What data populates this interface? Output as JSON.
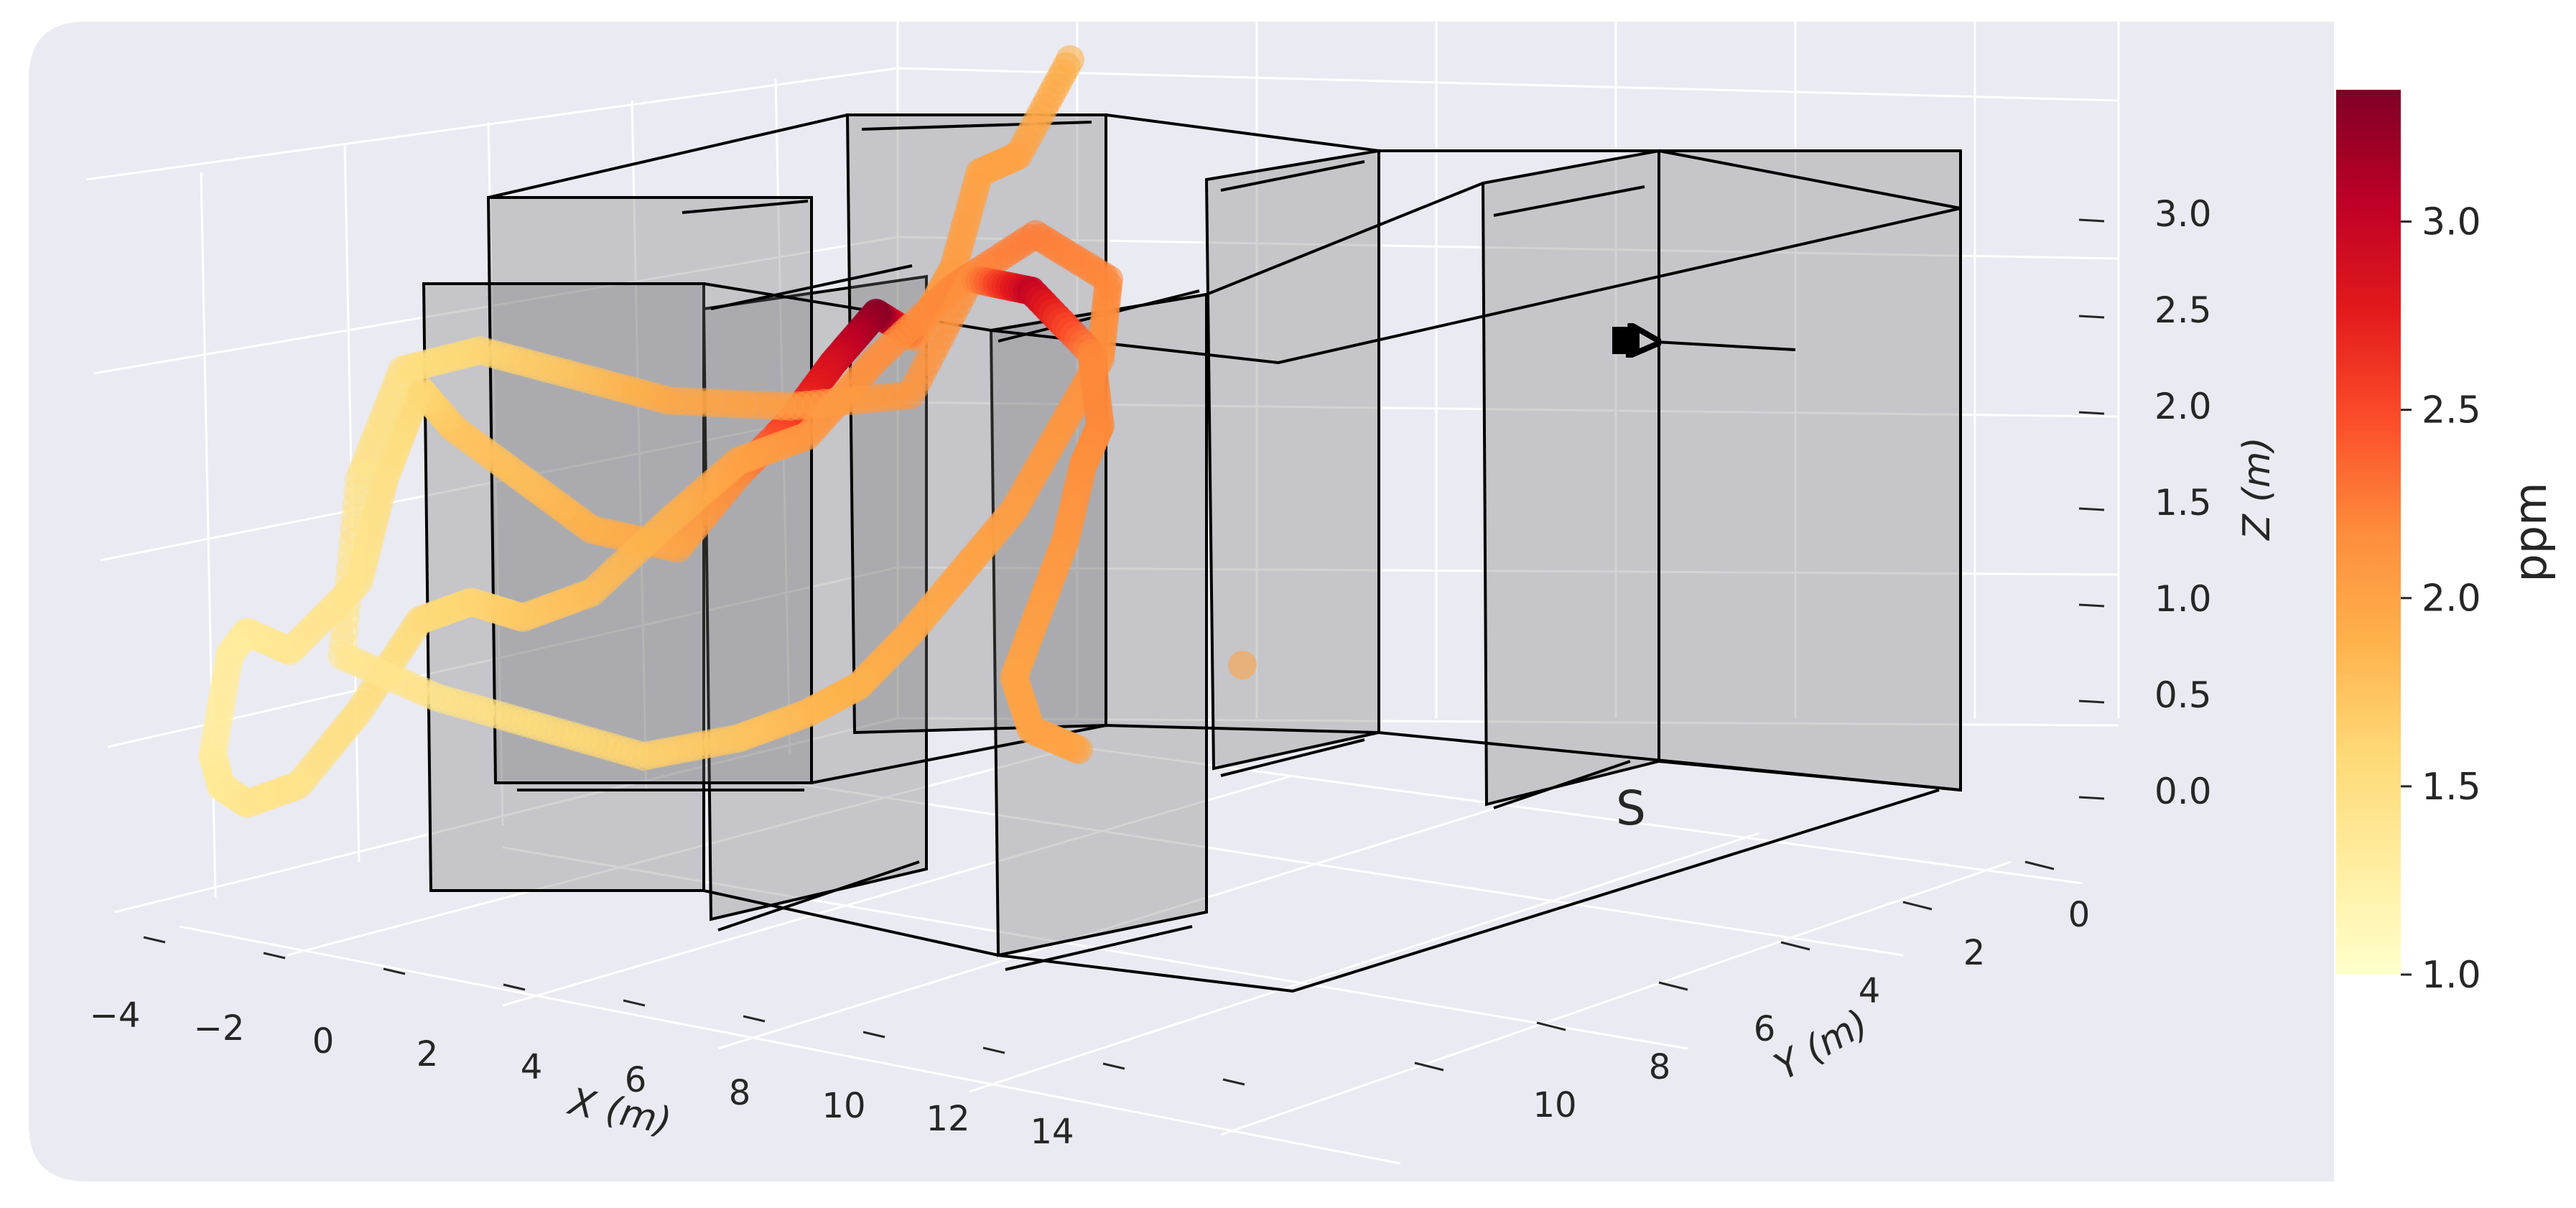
{
  "chart_data": {
    "type": "scatter",
    "projection": "3d",
    "title": "",
    "xlabel": "X (m)",
    "ylabel": "Y (m)",
    "zlabel": "Z (m)",
    "xlim": [
      -4,
      15
    ],
    "ylim": [
      -1,
      11
    ],
    "zlim": [
      -0.3,
      3.4
    ],
    "x_ticks": [
      "−4",
      "−2",
      "0",
      "2",
      "4",
      "6",
      "8",
      "10",
      "12",
      "14"
    ],
    "y_ticks": [
      "0",
      "2",
      "4",
      "6",
      "8",
      "10"
    ],
    "z_ticks": [
      "0.0",
      "0.5",
      "1.0",
      "1.5",
      "2.0",
      "2.5",
      "3.0"
    ],
    "grid": true,
    "colorbar": {
      "label": "ppm",
      "colormap": "YlOrRd",
      "range": [
        1.0,
        3.35
      ],
      "ticks": [
        "1.0",
        "1.5",
        "2.0",
        "2.5",
        "3.0"
      ]
    },
    "annotations": [
      {
        "text": "S",
        "role": "source-location"
      }
    ],
    "marker": {
      "type": "square",
      "color": "#000000",
      "arrow": true
    },
    "series": [
      {
        "values": [
          [
            10.5,
            0.5,
            2.3,
            1.9
          ],
          [
            9.6,
            1.1,
            2.0,
            2.0
          ],
          [
            8.7,
            2.0,
            2.2,
            2.0
          ],
          [
            8.0,
            2.8,
            1.9,
            2.05
          ],
          [
            7.3,
            3.3,
            1.7,
            2.1
          ],
          [
            7.0,
            3.0,
            1.85,
            3.3
          ],
          [
            6.3,
            3.4,
            1.75,
            2.9
          ],
          [
            5.6,
            3.8,
            1.6,
            2.6
          ],
          [
            4.8,
            4.2,
            1.5,
            2.2
          ],
          [
            3.9,
            4.6,
            1.3,
            2.0
          ],
          [
            3.1,
            4.2,
            1.5,
            1.9
          ],
          [
            2.6,
            3.6,
            1.8,
            1.8
          ],
          [
            2.1,
            3.0,
            2.1,
            1.75
          ],
          [
            1.5,
            3.4,
            2.5,
            1.6
          ],
          [
            0.8,
            4.0,
            2.2,
            1.5
          ],
          [
            0.2,
            4.6,
            1.8,
            1.45
          ],
          [
            -0.5,
            4.4,
            1.5,
            1.4
          ],
          [
            -1.2,
            4.8,
            1.8,
            1.35
          ],
          [
            -1.8,
            5.6,
            1.9,
            1.3
          ],
          [
            -2.3,
            6.2,
            1.5,
            1.3
          ],
          [
            -2.0,
            5.8,
            1.2,
            1.35
          ],
          [
            -1.4,
            5.2,
            0.9,
            1.4
          ],
          [
            -0.6,
            4.8,
            0.8,
            1.45
          ],
          [
            0.3,
            4.4,
            1.0,
            1.5
          ],
          [
            1.2,
            4.0,
            1.3,
            1.55
          ],
          [
            2.0,
            3.6,
            1.2,
            1.6
          ],
          [
            2.8,
            3.2,
            0.9,
            1.7
          ],
          [
            3.8,
            2.8,
            0.8,
            1.8
          ],
          [
            4.8,
            2.6,
            1.0,
            1.9
          ],
          [
            5.8,
            2.2,
            1.1,
            2.0
          ],
          [
            6.8,
            1.8,
            1.0,
            2.1
          ],
          [
            7.8,
            1.4,
            1.2,
            2.15
          ],
          [
            8.8,
            1.2,
            1.4,
            2.2
          ],
          [
            9.6,
            1.5,
            1.6,
            2.25
          ],
          [
            10.2,
            2.0,
            1.3,
            2.2
          ],
          [
            9.8,
            2.6,
            1.0,
            2.15
          ],
          [
            9.0,
            3.2,
            0.8,
            2.1
          ],
          [
            8.2,
            3.8,
            0.6,
            2.05
          ],
          [
            7.3,
            4.4,
            0.5,
            2.0
          ],
          [
            6.4,
            5.0,
            0.4,
            1.95
          ],
          [
            5.6,
            5.4,
            0.3,
            1.9
          ],
          [
            4.8,
            5.8,
            0.35,
            1.85
          ],
          [
            3.8,
            6.2,
            0.45,
            1.75
          ],
          [
            2.6,
            6.4,
            0.6,
            1.65
          ],
          [
            1.6,
            6.0,
            0.9,
            1.55
          ],
          [
            0.6,
            5.6,
            1.2,
            1.45
          ],
          [
            -0.4,
            5.4,
            1.6,
            1.4
          ],
          [
            0.4,
            4.2,
            2.3,
            1.45
          ],
          [
            1.4,
            3.2,
            2.6,
            1.5
          ],
          [
            2.6,
            2.6,
            2.4,
            1.6
          ],
          [
            3.8,
            2.4,
            2.0,
            1.75
          ],
          [
            5.0,
            2.2,
            1.6,
            1.95
          ],
          [
            6.2,
            2.6,
            1.4,
            2.05
          ],
          [
            7.4,
            3.0,
            1.3,
            2.1
          ],
          [
            8.4,
            2.4,
            1.7,
            2.15
          ],
          [
            9.2,
            2.2,
            1.45,
            3.0
          ],
          [
            9.6,
            2.8,
            1.1,
            2.2
          ],
          [
            9.2,
            3.8,
            0.9,
            2.2
          ],
          [
            8.6,
            4.6,
            0.9,
            2.15
          ],
          [
            8.0,
            5.4,
            0.7,
            2.1
          ],
          [
            7.4,
            6.0,
            0.5,
            2.05
          ],
          [
            6.8,
            6.6,
            0.3,
            2.0
          ],
          [
            6.6,
            7.4,
            0.15,
            2.0
          ],
          [
            6.9,
            7.9,
            0.05,
            2.0
          ],
          [
            9.5,
            6.5,
            -0.15,
            2.0
          ]
        ]
      }
    ]
  }
}
